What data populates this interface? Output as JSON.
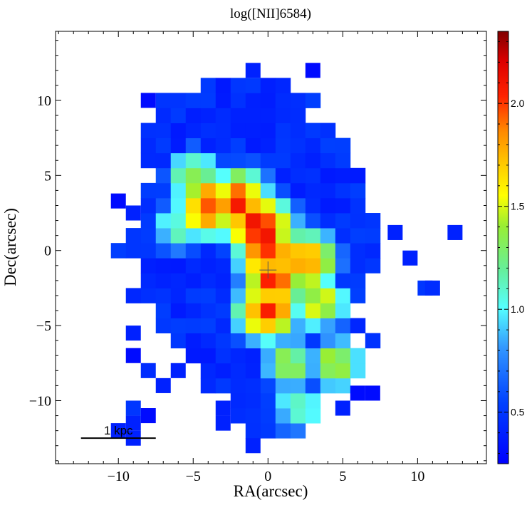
{
  "chart_data": {
    "type": "heatmap",
    "title": "log([NII]6584)",
    "xlabel": "RA(arcsec)",
    "ylabel": "Dec(arcsec)",
    "xlim": [
      -14.2,
      14.6
    ],
    "ylim": [
      -14.2,
      14.6
    ],
    "xticks": [
      -10,
      -5,
      0,
      5,
      10
    ],
    "yticks": [
      -10,
      -5,
      0,
      5,
      10
    ],
    "xtick_labels": [
      "−10",
      "−5",
      "0",
      "5",
      "10"
    ],
    "ytick_labels": [
      "−10",
      "−5",
      "0",
      "5",
      "10"
    ],
    "pixel_size_arcsec": 1.0,
    "colorbar": {
      "range": [
        0.25,
        2.35
      ],
      "ticks": [
        0.5,
        1.0,
        1.5,
        2.0
      ],
      "tick_labels": [
        "0.5",
        "1.0",
        "1.5",
        "2.0"
      ],
      "colormap": "rainbow"
    },
    "scale_bar": {
      "label": "1 kpc",
      "x_start": -12.5,
      "x_end": -7.5,
      "y": -12.5
    },
    "center_marker": {
      "x": 0,
      "y": -1.3,
      "symbol": "plus"
    },
    "map_model": {
      "envelope": [
        {
          "y": 11.5,
          "xmin": -3.0,
          "xmax": 1.0
        },
        {
          "y": 10.0,
          "xmin": -7.0,
          "xmax": 3.0
        },
        {
          "y": 8.0,
          "xmin": -8.0,
          "xmax": 4.0
        },
        {
          "y": 5.0,
          "xmin": -8.5,
          "xmax": 7.5
        },
        {
          "y": 2.0,
          "xmin": -8.5,
          "xmax": 7.5
        },
        {
          "y": 0.0,
          "xmin": -10.0,
          "xmax": 7.5
        },
        {
          "y": -3.0,
          "xmin": -9.5,
          "xmax": 7.0
        },
        {
          "y": -6.0,
          "xmin": -8.0,
          "xmax": 7.0
        },
        {
          "y": -9.0,
          "xmin": -4.0,
          "xmax": 6.0
        },
        {
          "y": -11.0,
          "xmin": -2.0,
          "xmax": 4.0
        },
        {
          "y": -12.8,
          "xmin": -1.0,
          "xmax": 2.0
        }
      ],
      "core_points": [
        {
          "x": -4.0,
          "y": 3.0,
          "value": 2.0
        },
        {
          "x": -2.0,
          "y": 3.2,
          "value": 2.05
        },
        {
          "x": -0.5,
          "y": 1.5,
          "value": 2.2
        },
        {
          "x": 0.0,
          "y": 0.0,
          "value": 2.1
        },
        {
          "x": 0.5,
          "y": -2.0,
          "value": 2.05
        },
        {
          "x": 0.0,
          "y": -4.0,
          "value": 2.0
        },
        {
          "x": 2.5,
          "y": -0.8,
          "value": 1.9
        }
      ],
      "arm_points": [
        {
          "x": -5.0,
          "y": 5.0,
          "value": 1.4
        },
        {
          "x": -6.0,
          "y": 1.5,
          "value": 1.2
        },
        {
          "x": 1.5,
          "y": -7.5,
          "value": 1.4
        },
        {
          "x": 2.0,
          "y": -10.5,
          "value": 1.2
        },
        {
          "x": 3.5,
          "y": -3.5,
          "value": 1.6
        },
        {
          "x": 4.5,
          "y": -7.5,
          "value": 1.5
        }
      ],
      "peak_value": 2.3,
      "min_value": 0.3,
      "outliers": [
        {
          "x": -1,
          "y": 12,
          "value": 0.4
        },
        {
          "x": 3,
          "y": 12,
          "value": 0.3
        },
        {
          "x": -8,
          "y": 10,
          "value": 0.3
        },
        {
          "x": 12.5,
          "y": 1.2,
          "value": 0.4
        },
        {
          "x": 8.5,
          "y": 1.2,
          "value": 0.4
        },
        {
          "x": 9.5,
          "y": -0.5,
          "value": 0.4
        },
        {
          "x": 10.5,
          "y": -2.5,
          "value": 0.5
        },
        {
          "x": 11,
          "y": -2.5,
          "value": 0.45
        },
        {
          "x": -10,
          "y": 3.3,
          "value": 0.3
        },
        {
          "x": -9,
          "y": 2.5,
          "value": 0.4
        },
        {
          "x": -9,
          "y": -5.5,
          "value": 0.4
        },
        {
          "x": -9,
          "y": -7,
          "value": 0.3
        },
        {
          "x": -8,
          "y": -8,
          "value": 0.45
        },
        {
          "x": -7,
          "y": -9,
          "value": 0.4
        },
        {
          "x": -6,
          "y": -8,
          "value": 0.4
        },
        {
          "x": -9,
          "y": -10.5,
          "value": 0.5
        },
        {
          "x": -9,
          "y": -11.5,
          "value": 0.4
        },
        {
          "x": -8,
          "y": -11,
          "value": 0.3
        },
        {
          "x": -10,
          "y": -12,
          "value": 0.4
        },
        {
          "x": -9,
          "y": -12.5,
          "value": 0.4
        },
        {
          "x": -3,
          "y": -11.5,
          "value": 0.4
        },
        {
          "x": -3,
          "y": -10.5,
          "value": 0.4
        },
        {
          "x": -1,
          "y": -13,
          "value": 0.4
        },
        {
          "x": 5,
          "y": -10.5,
          "value": 0.4
        },
        {
          "x": 6,
          "y": -9.5,
          "value": 0.3
        },
        {
          "x": 7,
          "y": -9.5,
          "value": 0.3
        }
      ]
    }
  }
}
